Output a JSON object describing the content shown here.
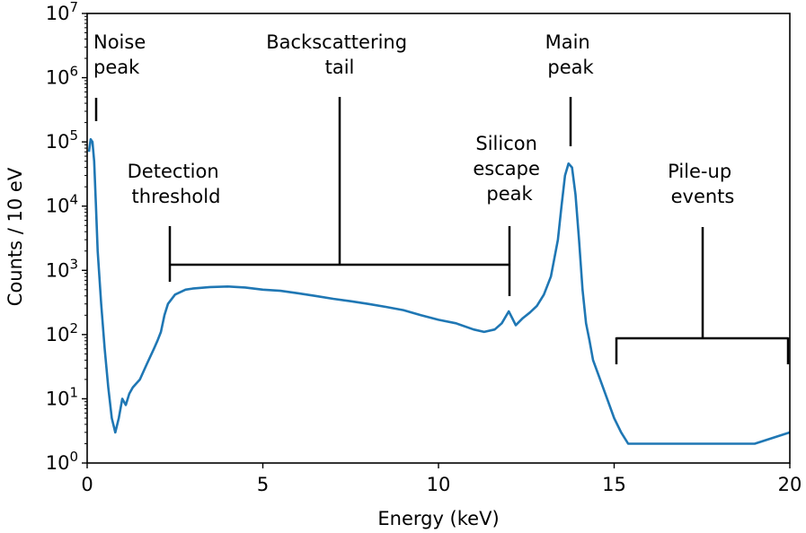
{
  "chart_data": {
    "type": "line",
    "title": "",
    "xlabel": "Energy (keV)",
    "ylabel": "Counts / 10 eV",
    "x_scale": "linear",
    "y_scale": "log",
    "xlim": [
      0,
      20
    ],
    "ylim": [
      1,
      10000000
    ],
    "grid": false,
    "legend": "none",
    "x_ticks": [
      {
        "value": 0,
        "label": "0"
      },
      {
        "value": 5,
        "label": "5"
      },
      {
        "value": 10,
        "label": "10"
      },
      {
        "value": 15,
        "label": "15"
      },
      {
        "value": 20,
        "label": "20"
      }
    ],
    "y_ticks": [
      {
        "value": 1,
        "base": "10",
        "exp": "0"
      },
      {
        "value": 10,
        "base": "10",
        "exp": "1"
      },
      {
        "value": 100,
        "base": "10",
        "exp": "2"
      },
      {
        "value": 1000,
        "base": "10",
        "exp": "3"
      },
      {
        "value": 10000,
        "base": "10",
        "exp": "4"
      },
      {
        "value": 100000,
        "base": "10",
        "exp": "5"
      },
      {
        "value": 1000000,
        "base": "10",
        "exp": "6"
      },
      {
        "value": 10000000,
        "base": "10",
        "exp": "7"
      }
    ],
    "series": [
      {
        "color": "#1f77b4",
        "x": [
          0.05,
          0.1,
          0.15,
          0.2,
          0.25,
          0.3,
          0.4,
          0.5,
          0.6,
          0.7,
          0.8,
          0.9,
          1.0,
          1.1,
          1.2,
          1.3,
          1.5,
          1.7,
          1.9,
          2.0,
          2.1,
          2.2,
          2.3,
          2.5,
          2.8,
          3.0,
          3.5,
          4.0,
          4.5,
          5.0,
          5.5,
          6.0,
          6.5,
          7.0,
          7.5,
          8.0,
          8.5,
          9.0,
          9.5,
          10.0,
          10.5,
          11.0,
          11.3,
          11.6,
          11.8,
          12.0,
          12.1,
          12.2,
          12.4,
          12.6,
          12.8,
          13.0,
          13.2,
          13.4,
          13.5,
          13.6,
          13.7,
          13.8,
          13.9,
          14.0,
          14.1,
          14.2,
          14.3,
          14.4,
          14.6,
          14.8,
          15.0,
          15.2,
          15.4,
          15.7,
          16.0,
          17.0,
          18.0,
          19.0,
          20.0
        ],
        "y": [
          70000,
          110000,
          100000,
          50000,
          10000,
          2000,
          300,
          60,
          15,
          5,
          3,
          5,
          10,
          8,
          12,
          15,
          20,
          35,
          60,
          80,
          110,
          200,
          300,
          420,
          500,
          520,
          550,
          560,
          540,
          500,
          480,
          440,
          400,
          360,
          330,
          300,
          270,
          240,
          200,
          170,
          150,
          120,
          110,
          120,
          150,
          230,
          180,
          140,
          180,
          220,
          280,
          420,
          800,
          3000,
          10000,
          30000,
          46000,
          40000,
          15000,
          3000,
          500,
          150,
          80,
          40,
          20,
          10,
          5,
          3,
          2,
          2,
          2,
          2,
          2,
          2,
          3
        ]
      }
    ],
    "annotations": [
      {
        "lines": [
          "Noise",
          "peak"
        ]
      },
      {
        "lines": [
          "Backscattering",
          "tail"
        ]
      },
      {
        "lines": [
          "Main",
          "peak"
        ]
      },
      {
        "lines": [
          "Silicon",
          "escape",
          "peak"
        ]
      },
      {
        "lines": [
          "Detection",
          "threshold"
        ]
      },
      {
        "lines": [
          "Pile-up",
          "events"
        ]
      }
    ]
  }
}
